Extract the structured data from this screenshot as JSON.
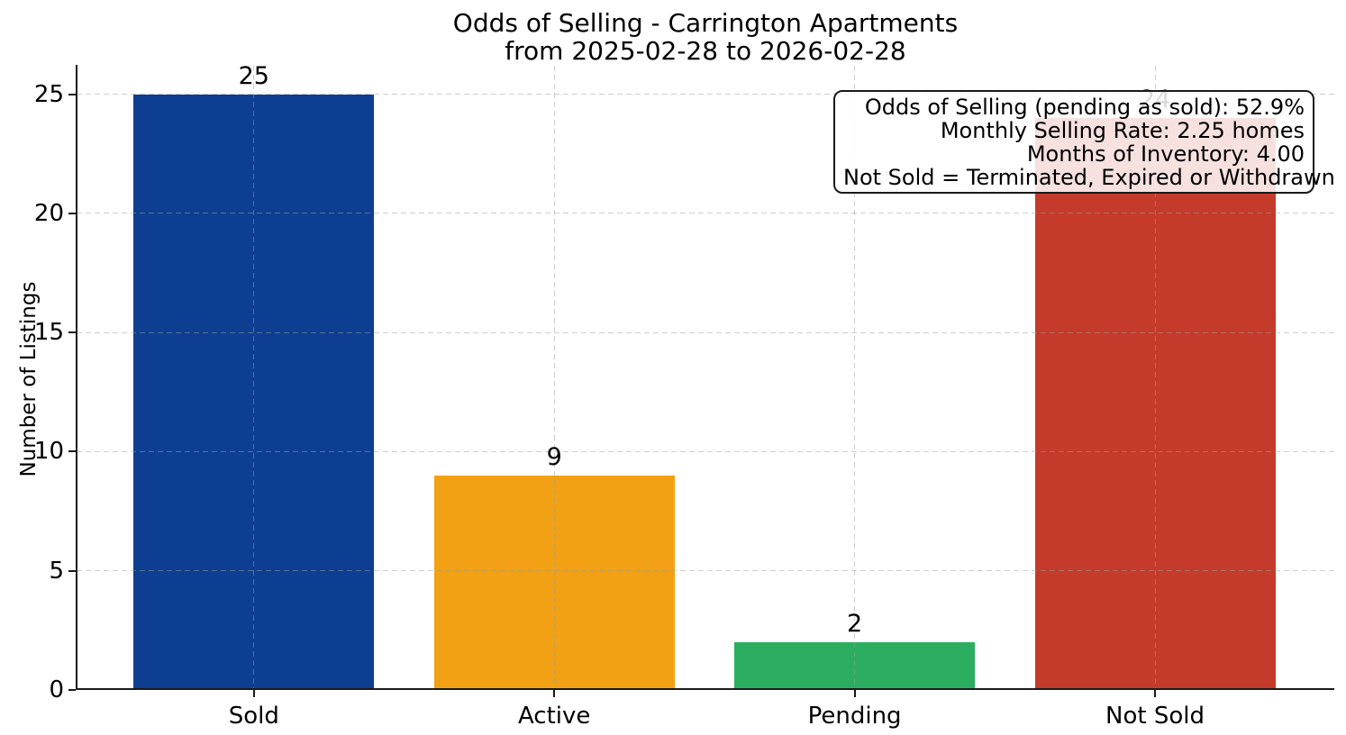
{
  "chart_data": {
    "type": "bar",
    "title": "Odds of Selling - Carrington Apartments",
    "subtitle": "from 2025-02-28 to 2026-02-28",
    "ylabel": "Number of Listings",
    "xlabel": "",
    "categories": [
      "Sold",
      "Active",
      "Pending",
      "Not Sold"
    ],
    "values": [
      25,
      9,
      2,
      24
    ],
    "bar_colors": [
      "#0e3e91",
      "#f2a014",
      "#2bae60",
      "#c43a2b"
    ],
    "value_labels": [
      "25",
      "9",
      "2",
      "24"
    ],
    "yticks": [
      0,
      5,
      10,
      15,
      20,
      25
    ],
    "ylim": [
      0,
      26.2
    ],
    "grid": {
      "style": "dashed",
      "axes": "both",
      "above_bars": true
    },
    "legend_position": "none",
    "annotation": {
      "lines": [
        "Odds of Selling (pending as sold): 52.9%",
        "Monthly Selling Rate: 2.25 homes",
        "Months of Inventory: 4.00",
        "Not Sold = Terminated, Expired or Withdrawn"
      ]
    }
  }
}
